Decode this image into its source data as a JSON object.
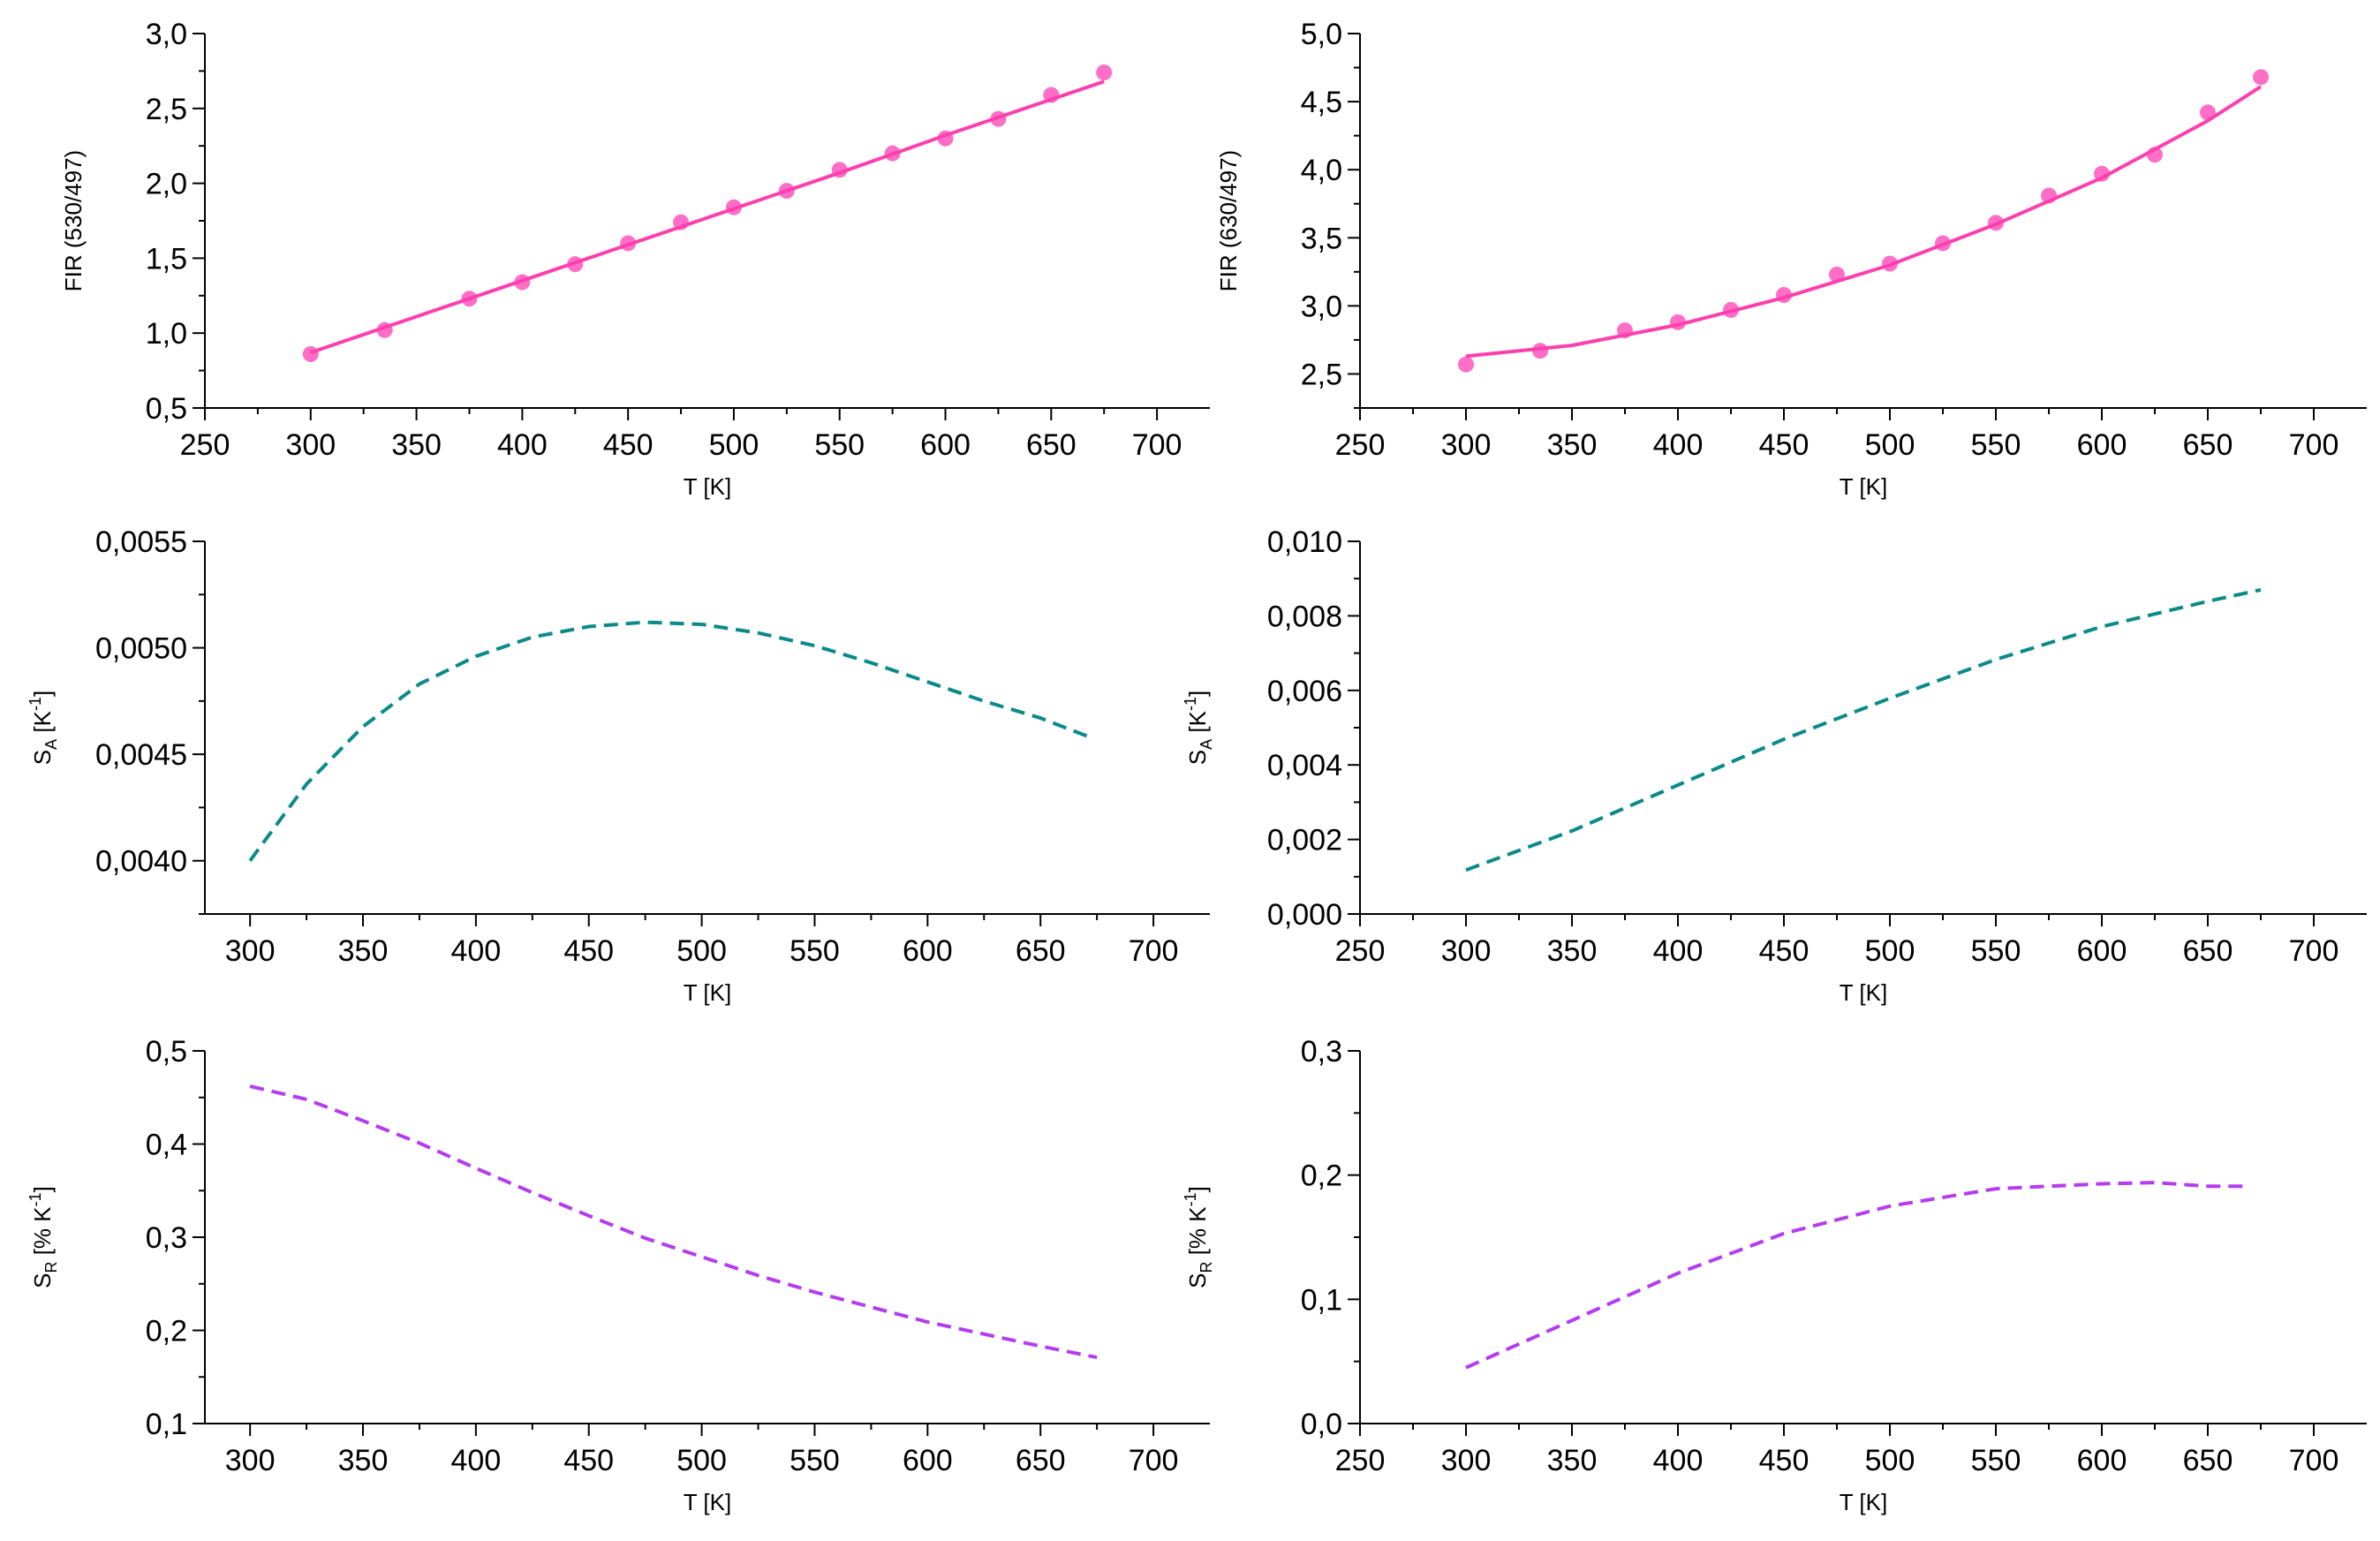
{
  "colors": {
    "fir": "#ff3fae",
    "points": "#ff6ec7",
    "sa": "#0b8a8a",
    "sr": "#b43cf2",
    "axis": "#000000"
  },
  "chart_data": [
    {
      "id": "p1",
      "type": "scatter",
      "title": "",
      "xlabel": "T [K]",
      "ylabel": {
        "main": "FIR (530/497)",
        "sub": "",
        "sup": "",
        "tail": ""
      },
      "xlim": [
        250,
        725
      ],
      "ylim": [
        0.5,
        3.0
      ],
      "xticks": [
        "250",
        "300",
        "350",
        "400",
        "450",
        "500",
        "550",
        "600",
        "650",
        "700"
      ],
      "yticks": [
        "0,5",
        "1,0",
        "1,5",
        "2,0",
        "2,5",
        "3,0"
      ],
      "ytick_values": [
        0.5,
        1.0,
        1.5,
        2.0,
        2.5,
        3.0
      ],
      "series": [
        {
          "name": "data",
          "kind": "points",
          "color": "#ff6ec7",
          "x": [
            300,
            335,
            375,
            400,
            425,
            450,
            475,
            500,
            525,
            550,
            575,
            600,
            625,
            650,
            675
          ],
          "y": [
            0.86,
            1.02,
            1.23,
            1.34,
            1.46,
            1.6,
            1.74,
            1.84,
            1.95,
            2.09,
            2.2,
            2.3,
            2.43,
            2.59,
            2.74
          ]
        },
        {
          "name": "fit",
          "kind": "solid",
          "color": "#ff3fae",
          "x": [
            300,
            350,
            400,
            450,
            500,
            550,
            600,
            650,
            675
          ],
          "y": [
            0.87,
            1.11,
            1.35,
            1.59,
            1.83,
            2.07,
            2.32,
            2.56,
            2.68
          ]
        }
      ]
    },
    {
      "id": "p2",
      "type": "scatter",
      "title": "",
      "xlabel": "T [K]",
      "ylabel": {
        "main": "FIR (630/497)",
        "sub": "",
        "sup": "",
        "tail": ""
      },
      "xlim": [
        250,
        725
      ],
      "ylim": [
        2.25,
        5.0
      ],
      "xticks": [
        "250",
        "300",
        "350",
        "400",
        "450",
        "500",
        "550",
        "600",
        "650",
        "700"
      ],
      "yticks": [
        "2,5",
        "3,0",
        "3,5",
        "4,0",
        "4,5",
        "5,0"
      ],
      "ytick_values": [
        2.5,
        3.0,
        3.5,
        4.0,
        4.5,
        5.0
      ],
      "series": [
        {
          "name": "data",
          "kind": "points",
          "color": "#ff6ec7",
          "x": [
            300,
            335,
            375,
            400,
            425,
            450,
            475,
            500,
            525,
            550,
            575,
            600,
            625,
            650,
            675
          ],
          "y": [
            2.57,
            2.67,
            2.82,
            2.88,
            2.97,
            3.08,
            3.23,
            3.31,
            3.46,
            3.61,
            3.81,
            3.97,
            4.11,
            4.42,
            4.68
          ]
        },
        {
          "name": "fit",
          "kind": "solid",
          "color": "#ff3fae",
          "x": [
            300,
            350,
            400,
            450,
            500,
            550,
            600,
            650,
            675
          ],
          "y": [
            2.63,
            2.71,
            2.86,
            3.06,
            3.3,
            3.6,
            3.94,
            4.36,
            4.61
          ]
        }
      ]
    },
    {
      "id": "p3",
      "type": "line",
      "title": "",
      "xlabel": "T [K]",
      "ylabel": {
        "main": "S",
        "sub": "A",
        "sup": "-1",
        "tail": " [K"
      },
      "xlim": [
        280,
        725
      ],
      "ylim": [
        0.00375,
        0.0055
      ],
      "xticks": [
        "300",
        "350",
        "400",
        "450",
        "500",
        "550",
        "600",
        "650",
        "700"
      ],
      "yticks": [
        "0,0040",
        "0,0045",
        "0,0050",
        "0,0055"
      ],
      "ytick_values": [
        0.004,
        0.0045,
        0.005,
        0.0055
      ],
      "series": [
        {
          "name": "S_A",
          "kind": "dashed",
          "color": "#0b8a8a",
          "x": [
            300,
            325,
            350,
            375,
            400,
            425,
            450,
            475,
            500,
            525,
            550,
            575,
            600,
            625,
            650,
            672
          ],
          "y": [
            0.004,
            0.00436,
            0.00463,
            0.00483,
            0.00496,
            0.00505,
            0.0051,
            0.00512,
            0.00511,
            0.00507,
            0.00501,
            0.00493,
            0.00484,
            0.00475,
            0.00467,
            0.00458
          ]
        }
      ]
    },
    {
      "id": "p4",
      "type": "line",
      "title": "",
      "xlabel": "T [K]",
      "ylabel": {
        "main": "S",
        "sub": "A",
        "sup": "-1",
        "tail": " [K"
      },
      "xlim": [
        250,
        725
      ],
      "ylim": [
        0.0,
        0.01
      ],
      "xticks": [
        "250",
        "300",
        "350",
        "400",
        "450",
        "500",
        "550",
        "600",
        "650",
        "700"
      ],
      "yticks": [
        "0,000",
        "0,002",
        "0,004",
        "0,006",
        "0,008",
        "0,010"
      ],
      "ytick_values": [
        0.0,
        0.002,
        0.004,
        0.006,
        0.008,
        0.01
      ],
      "series": [
        {
          "name": "S_A",
          "kind": "dashed",
          "color": "#0b8a8a",
          "x": [
            300,
            350,
            400,
            450,
            500,
            550,
            600,
            650,
            675
          ],
          "y": [
            0.00118,
            0.00223,
            0.00346,
            0.00469,
            0.00579,
            0.00683,
            0.00771,
            0.00839,
            0.0087
          ]
        }
      ]
    },
    {
      "id": "p5",
      "type": "line",
      "title": "",
      "xlabel": "T [K]",
      "ylabel": {
        "main": "S",
        "sub": "R",
        "sup": "-1",
        "tail": " [% K"
      },
      "xlim": [
        280,
        725
      ],
      "ylim": [
        0.1,
        0.5
      ],
      "xticks": [
        "300",
        "350",
        "400",
        "450",
        "500",
        "550",
        "600",
        "650",
        "700"
      ],
      "yticks": [
        "0,1",
        "0,2",
        "0,3",
        "0,4",
        "0,5"
      ],
      "ytick_values": [
        0.1,
        0.2,
        0.3,
        0.4,
        0.5
      ],
      "series": [
        {
          "name": "S_R",
          "kind": "dashed",
          "color": "#b43cf2",
          "x": [
            300,
            325,
            350,
            375,
            400,
            425,
            450,
            475,
            500,
            525,
            550,
            575,
            600,
            625,
            650,
            675
          ],
          "y": [
            0.462,
            0.448,
            0.425,
            0.401,
            0.374,
            0.348,
            0.323,
            0.299,
            0.279,
            0.259,
            0.241,
            0.225,
            0.209,
            0.196,
            0.183,
            0.171
          ]
        }
      ]
    },
    {
      "id": "p6",
      "type": "line",
      "title": "",
      "xlabel": "T [K]",
      "ylabel": {
        "main": "S",
        "sub": "R",
        "sup": "-1",
        "tail": " [% K"
      },
      "xlim": [
        250,
        725
      ],
      "ylim": [
        0.0,
        0.3
      ],
      "xticks": [
        "250",
        "300",
        "350",
        "400",
        "450",
        "500",
        "550",
        "600",
        "650",
        "700"
      ],
      "yticks": [
        "0,0",
        "0,1",
        "0,2",
        "0,3"
      ],
      "ytick_values": [
        0.0,
        0.1,
        0.2,
        0.3
      ],
      "series": [
        {
          "name": "S_R",
          "kind": "dashed",
          "color": "#b43cf2",
          "x": [
            300,
            350,
            400,
            450,
            500,
            550,
            600,
            625,
            650,
            668
          ],
          "y": [
            0.045,
            0.083,
            0.121,
            0.153,
            0.175,
            0.189,
            0.193,
            0.194,
            0.191,
            0.191
          ]
        }
      ]
    }
  ]
}
